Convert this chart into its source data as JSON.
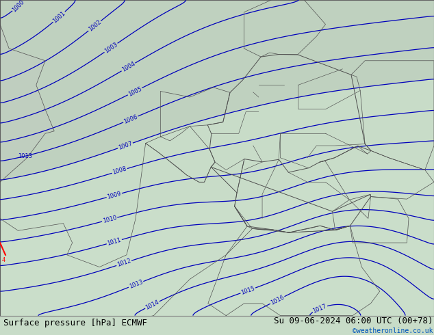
{
  "title_left": "Surface pressure [hPa] ECMWF",
  "title_right": "Su 09-06-2024 06:00 UTC (00+78)",
  "credit": "©weatheronline.co.uk",
  "bg_color": "#c8dcc8",
  "map_land_color": "#c8dcc8",
  "map_gray_color": "#b8c8b8",
  "map_white_color": "#e8eee8",
  "isobar_color": "#0000bb",
  "label_color": "#0000bb",
  "text_color_black": "#000000",
  "text_color_blue": "#0055bb",
  "border_color": "#505050",
  "bottom_bar_color": "#c0c0c0",
  "font_size_title": 9,
  "font_size_labels": 6.5,
  "font_size_credit": 7
}
